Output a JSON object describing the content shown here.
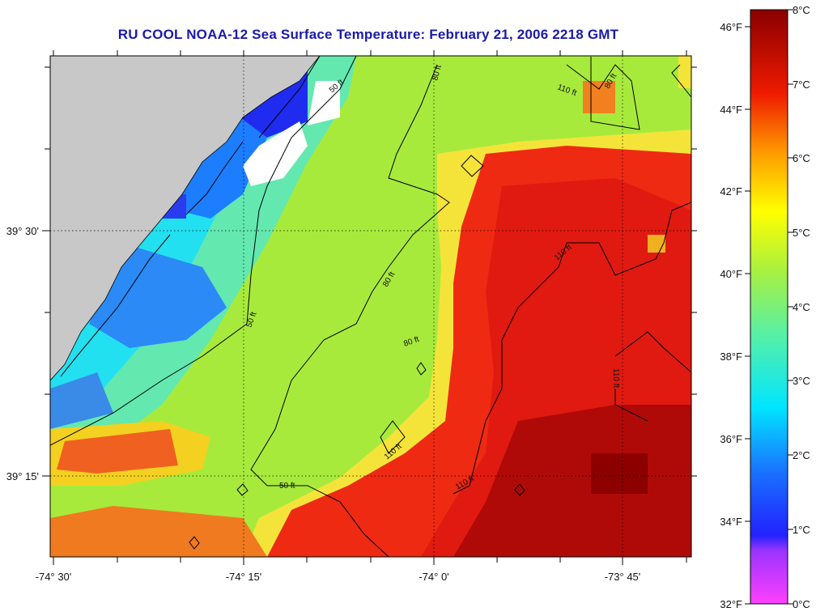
{
  "title": "RU COOL  NOAA-12  Sea Surface Temperature:  February 21, 2006 2218 GMT",
  "axes": {
    "lon_labels": [
      "-74° 30'",
      "-74° 15'",
      "-74° 0'",
      "-73° 45'"
    ],
    "lat_labels": [
      "39° 30'",
      "39° 15'"
    ]
  },
  "contours": [
    "50 ft",
    "80 ft",
    "110 ft"
  ],
  "colorbar": {
    "fahrenheit": [
      "46°F",
      "44°F",
      "42°F",
      "40°F",
      "38°F",
      "36°F",
      "34°F",
      "32°F"
    ],
    "celsius": [
      "8°C",
      "7°C",
      "6°C",
      "5°C",
      "4°C",
      "3°C",
      "2°C",
      "1°C",
      "0°C"
    ]
  },
  "colors": {
    "land": "#c8c8c8",
    "cloud": "#ffffff",
    "title": "#1a1aa8",
    "warm": "#dd1a10",
    "mid": "#a8ea3c",
    "cold": "#1560f5"
  }
}
